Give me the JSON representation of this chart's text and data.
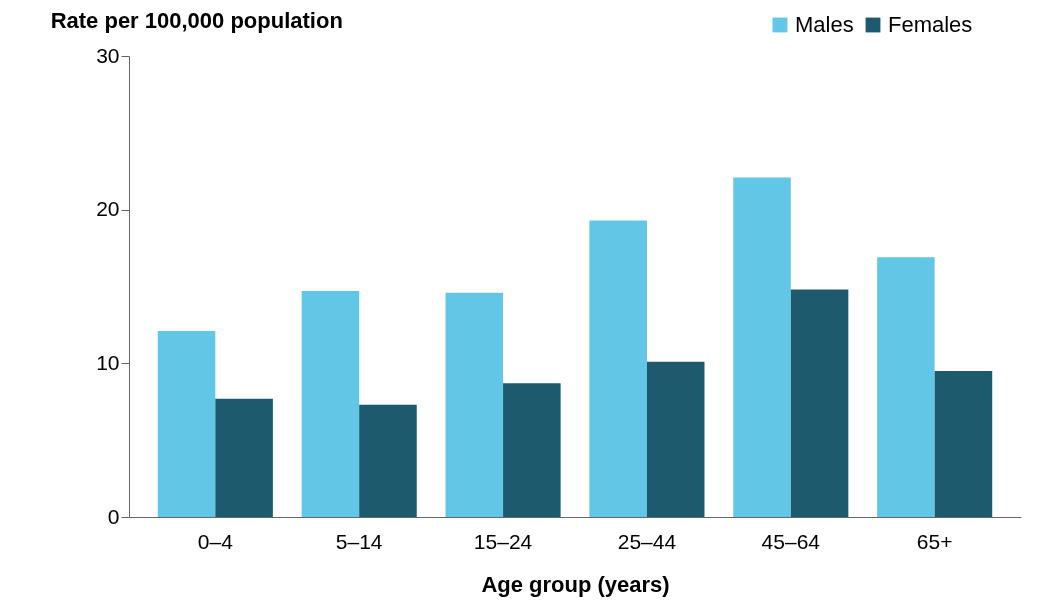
{
  "chart_data": {
    "type": "bar",
    "ylabel": "Rate per 100,000 population",
    "xlabel": "Age group (years)",
    "categories": [
      "0–4",
      "5–14",
      "15–24",
      "25–44",
      "45–64",
      "65+"
    ],
    "series": [
      {
        "name": "Males",
        "color": "#62c7e7",
        "values": [
          12.1,
          14.7,
          14.6,
          19.3,
          22.1,
          16.9
        ]
      },
      {
        "name": "Females",
        "color": "#1d5a6e",
        "values": [
          7.7,
          7.3,
          8.7,
          10.1,
          14.8,
          9.5
        ]
      }
    ],
    "ylim": [
      0,
      30
    ],
    "yticks": [
      0,
      10,
      20,
      30
    ],
    "grid": false,
    "legend": "top right"
  }
}
